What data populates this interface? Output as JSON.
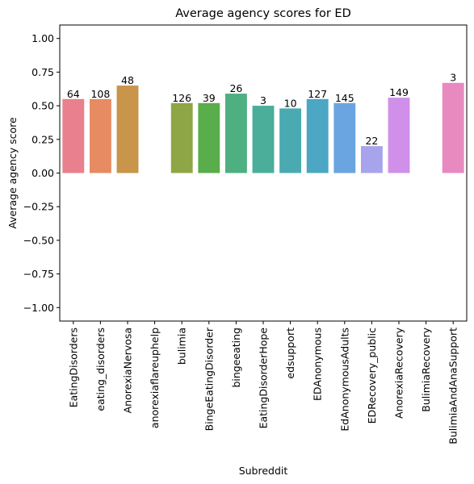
{
  "chart_data": {
    "type": "bar",
    "title": "Average agency scores for ED",
    "xlabel": "Subreddit",
    "ylabel": "Average agency score",
    "ylim": [
      -1.1,
      1.1
    ],
    "yticks": [
      "−1.00",
      "−0.75",
      "−0.50",
      "−0.25",
      "0.00",
      "0.25",
      "0.50",
      "0.75",
      "1.00"
    ],
    "ytick_values": [
      -1.0,
      -0.75,
      -0.5,
      -0.25,
      0.0,
      0.25,
      0.5,
      0.75,
      1.0
    ],
    "grid": false,
    "categories": [
      "EatingDisorders",
      "eating_disorders",
      "AnorexiaNervosa",
      "anorexiaflareuphelp",
      "bulimia",
      "BingeEatingDisorder",
      "bingeeating",
      "EatingDisorderHope",
      "edsupport",
      "EDAnonymous",
      "EdAnonymousAdults",
      "EDRecovery_public",
      "AnorexiaRecovery",
      "BulimiaRecovery",
      "BulimiaAndAnaSupport"
    ],
    "values": [
      0.55,
      0.55,
      0.65,
      null,
      0.52,
      0.52,
      0.59,
      0.5,
      0.48,
      0.55,
      0.52,
      0.2,
      0.56,
      null,
      0.67
    ],
    "counts": [
      "64",
      "108",
      "48",
      "",
      "126",
      "39",
      "26",
      "3",
      "10",
      "127",
      "145",
      "22",
      "149",
      "",
      "3"
    ],
    "colors": [
      "#e8808d",
      "#e78b63",
      "#c8954a",
      "#a99f3f",
      "#8ea646",
      "#5aad4b",
      "#4eaf81",
      "#4aae9b",
      "#4aaab1",
      "#4ba7c4",
      "#6aa5e1",
      "#a8a4ec",
      "#d090ea",
      "#e682d4",
      "#e889c0"
    ]
  }
}
